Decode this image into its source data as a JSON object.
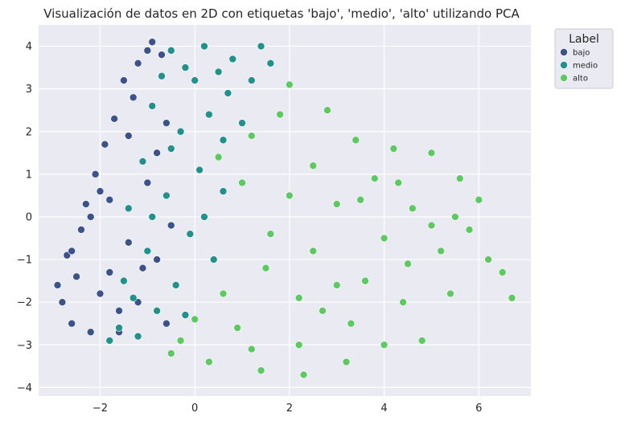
{
  "chart_data": {
    "type": "scatter",
    "title": "Visualización de datos en 2D con etiquetas 'bajo', 'medio', 'alto' utilizando PCA",
    "xlabel": "",
    "ylabel": "",
    "xlim": [
      -3.3,
      7.1
    ],
    "ylim": [
      -4.2,
      4.5
    ],
    "xticks": [
      -2,
      0,
      2,
      4,
      6
    ],
    "yticks": [
      -4,
      -3,
      -2,
      -1,
      0,
      1,
      2,
      3,
      4
    ],
    "grid": true,
    "legend": {
      "title": "Label",
      "placement": "top-right-outside"
    },
    "series": [
      {
        "name": "bajo",
        "color": "#3b528b",
        "points": [
          [
            -2.9,
            -1.6
          ],
          [
            -2.8,
            -2.0
          ],
          [
            -2.7,
            -0.9
          ],
          [
            -2.6,
            -2.5
          ],
          [
            -2.5,
            -1.4
          ],
          [
            -2.4,
            -0.3
          ],
          [
            -2.3,
            0.3
          ],
          [
            -2.2,
            -2.7
          ],
          [
            -2.1,
            1.0
          ],
          [
            -2.0,
            -1.8
          ],
          [
            -1.9,
            1.7
          ],
          [
            -1.8,
            0.4
          ],
          [
            -1.7,
            2.3
          ],
          [
            -1.6,
            -2.2
          ],
          [
            -1.5,
            3.2
          ],
          [
            -1.4,
            -0.6
          ],
          [
            -1.3,
            2.8
          ],
          [
            -1.2,
            3.6
          ],
          [
            -1.1,
            -1.2
          ],
          [
            -1.0,
            3.9
          ],
          [
            -0.9,
            4.1
          ],
          [
            -0.8,
            1.5
          ],
          [
            -0.7,
            3.8
          ],
          [
            -0.6,
            -2.5
          ],
          [
            -0.5,
            -0.2
          ],
          [
            -2.6,
            -0.8
          ],
          [
            -2.2,
            0.0
          ],
          [
            -1.8,
            -1.3
          ],
          [
            -1.4,
            1.9
          ],
          [
            -1.0,
            0.8
          ],
          [
            -0.6,
            2.2
          ],
          [
            -1.6,
            -2.7
          ],
          [
            -2.0,
            0.6
          ],
          [
            -1.2,
            -2.0
          ],
          [
            -0.8,
            -1.0
          ]
        ]
      },
      {
        "name": "medio",
        "color": "#21918c",
        "points": [
          [
            -1.8,
            -2.9
          ],
          [
            -1.6,
            -2.6
          ],
          [
            -1.5,
            -1.5
          ],
          [
            -1.4,
            0.2
          ],
          [
            -1.2,
            -2.8
          ],
          [
            -1.1,
            1.3
          ],
          [
            -1.0,
            -0.8
          ],
          [
            -0.9,
            2.6
          ],
          [
            -0.8,
            -2.2
          ],
          [
            -0.7,
            3.3
          ],
          [
            -0.6,
            0.5
          ],
          [
            -0.5,
            3.9
          ],
          [
            -0.4,
            -1.6
          ],
          [
            -0.3,
            2.0
          ],
          [
            -0.2,
            3.5
          ],
          [
            -0.1,
            -0.4
          ],
          [
            0.0,
            3.2
          ],
          [
            0.1,
            1.1
          ],
          [
            0.2,
            4.0
          ],
          [
            0.3,
            2.4
          ],
          [
            0.4,
            -1.0
          ],
          [
            0.5,
            3.4
          ],
          [
            0.6,
            0.6
          ],
          [
            0.7,
            2.9
          ],
          [
            0.8,
            3.7
          ],
          [
            1.0,
            2.2
          ],
          [
            1.2,
            3.2
          ],
          [
            1.4,
            4.0
          ],
          [
            1.6,
            3.6
          ],
          [
            -1.3,
            -1.9
          ],
          [
            -0.9,
            0.0
          ],
          [
            -0.5,
            1.6
          ],
          [
            -0.2,
            -2.3
          ],
          [
            0.2,
            0.0
          ],
          [
            0.6,
            1.8
          ]
        ]
      },
      {
        "name": "alto",
        "color": "#5ec962",
        "points": [
          [
            -0.5,
            -3.2
          ],
          [
            -0.3,
            -2.9
          ],
          [
            0.0,
            -2.4
          ],
          [
            0.3,
            -3.4
          ],
          [
            0.6,
            -1.8
          ],
          [
            0.9,
            -2.6
          ],
          [
            1.2,
            -3.1
          ],
          [
            1.4,
            -3.6
          ],
          [
            1.6,
            -0.4
          ],
          [
            1.8,
            2.4
          ],
          [
            2.0,
            3.1
          ],
          [
            2.2,
            -3.0
          ],
          [
            2.3,
            -3.7
          ],
          [
            2.5,
            1.2
          ],
          [
            2.7,
            -2.2
          ],
          [
            2.8,
            2.5
          ],
          [
            3.0,
            0.3
          ],
          [
            3.2,
            -3.4
          ],
          [
            3.4,
            1.8
          ],
          [
            3.6,
            -1.5
          ],
          [
            3.8,
            0.9
          ],
          [
            4.0,
            -3.0
          ],
          [
            4.2,
            1.6
          ],
          [
            4.4,
            -2.0
          ],
          [
            4.6,
            0.2
          ],
          [
            4.8,
            -2.9
          ],
          [
            5.0,
            1.5
          ],
          [
            5.2,
            -0.8
          ],
          [
            5.4,
            -1.8
          ],
          [
            5.6,
            0.9
          ],
          [
            5.8,
            -0.3
          ],
          [
            6.0,
            0.4
          ],
          [
            6.2,
            -1.0
          ],
          [
            6.5,
            -1.3
          ],
          [
            6.7,
            -1.9
          ],
          [
            1.0,
            0.8
          ],
          [
            1.5,
            -1.2
          ],
          [
            2.0,
            0.5
          ],
          [
            2.5,
            -0.8
          ],
          [
            3.0,
            -1.6
          ],
          [
            3.5,
            0.4
          ],
          [
            4.0,
            -0.5
          ],
          [
            4.5,
            -1.1
          ],
          [
            5.0,
            -0.2
          ],
          [
            0.5,
            1.4
          ],
          [
            1.2,
            1.9
          ],
          [
            2.2,
            -1.9
          ],
          [
            3.3,
            -2.5
          ],
          [
            4.3,
            0.8
          ],
          [
            5.5,
            0.0
          ]
        ]
      }
    ]
  }
}
